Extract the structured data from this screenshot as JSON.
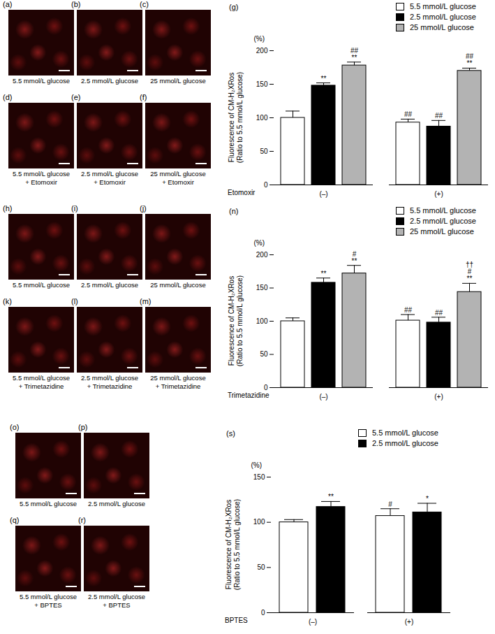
{
  "image_panels": [
    [
      {
        "label": "(a)",
        "caption": [
          "5.5 mmol/L glucose"
        ]
      },
      {
        "label": "(b)",
        "caption": [
          "2.5 mmol/L glucose"
        ]
      },
      {
        "label": "(c)",
        "caption": [
          "25 mmol/L glucose"
        ]
      },
      {
        "label": "(d)",
        "caption": [
          "5.5 mmol/L glucose",
          "+ Etomoxir"
        ]
      },
      {
        "label": "(e)",
        "caption": [
          "2.5 mmol/L glucose",
          "+ Etomoxir"
        ]
      },
      {
        "label": "(f)",
        "caption": [
          "25 mmol/L glucose",
          "+ Etomoxir"
        ]
      }
    ],
    [
      {
        "label": "(h)",
        "caption": [
          "5.5 mmol/L glucose"
        ]
      },
      {
        "label": "(i)",
        "caption": [
          "2.5 mmol/L glucose"
        ]
      },
      {
        "label": "(j)",
        "caption": [
          "25 mmol/L glucose"
        ]
      },
      {
        "label": "(k)",
        "caption": [
          "5.5 mmol/L glucose",
          "+ Trimetazidine"
        ]
      },
      {
        "label": "(l)",
        "caption": [
          "2.5 mmol/L glucose",
          "+ Trimetazidine"
        ]
      },
      {
        "label": "(m)",
        "caption": [
          "25 mmol/L glucose",
          "+ Trimetazidine"
        ]
      }
    ],
    [
      {
        "label": "(o)",
        "caption": [
          "5.5 mmol/L glucose"
        ]
      },
      {
        "label": "(p)",
        "caption": [
          "2.5 mmol/L glucose"
        ]
      },
      {
        "label": "(q)",
        "caption": [
          "5.5 mmol/L glucose",
          "+ BPTES"
        ]
      },
      {
        "label": "(r)",
        "caption": [
          "2.5 mmol/L glucose",
          "+ BPTES"
        ]
      }
    ]
  ],
  "chart_data": [
    {
      "type": "bar",
      "title": "(g)",
      "ylabel": [
        "Fluorescence of CM-H₂XRos",
        "(Ratio to 5.5 mmol/L glucose)"
      ],
      "y_unit_label": "(%)",
      "xlabel": "Etomoxir",
      "categories": [
        "(–)",
        "(+)"
      ],
      "ylim": [
        0,
        200
      ],
      "yticks": [
        0,
        50,
        100,
        150,
        200
      ],
      "legend": "top-right",
      "series": [
        {
          "name": "5.5 mmol/L glucose",
          "color": "#ffffff",
          "values": [
            100,
            93
          ],
          "errors": [
            10,
            5
          ],
          "annotations": [
            [],
            [
              "##"
            ]
          ]
        },
        {
          "name": "2.5 mmol/L glucose",
          "color": "#000000",
          "values": [
            148,
            87
          ],
          "errors": [
            4,
            9
          ],
          "annotations": [
            [
              "**"
            ],
            [
              "##"
            ]
          ]
        },
        {
          "name": "25 mmol/L glucose",
          "color": "#b3b3b3",
          "values": [
            178,
            170
          ],
          "errors": [
            5,
            4
          ],
          "annotations": [
            [
              "##",
              "**"
            ],
            [
              "##",
              "**"
            ]
          ]
        }
      ]
    },
    {
      "type": "bar",
      "title": "(n)",
      "ylabel": [
        "Fluorescence of CM-H₂XRos",
        "(Ratio to 5.5 mmol/L glucose)"
      ],
      "y_unit_label": "(%)",
      "xlabel": "Trimetazidine",
      "categories": [
        "(–)",
        "(+)"
      ],
      "ylim": [
        0,
        200
      ],
      "yticks": [
        0,
        50,
        100,
        150,
        200
      ],
      "legend": "top-right",
      "series": [
        {
          "name": "5.5 mmol/L glucose",
          "color": "#ffffff",
          "values": [
            100,
            101
          ],
          "errors": [
            5,
            9
          ],
          "annotations": [
            [],
            [
              "##"
            ]
          ]
        },
        {
          "name": "2.5 mmol/L glucose",
          "color": "#000000",
          "values": [
            158,
            98
          ],
          "errors": [
            7,
            8
          ],
          "annotations": [
            [
              "**"
            ],
            [
              "##"
            ]
          ]
        },
        {
          "name": "25 mmol/L glucose",
          "color": "#b3b3b3",
          "values": [
            172,
            144
          ],
          "errors": [
            12,
            13
          ],
          "annotations": [
            [
              "#",
              "**"
            ],
            [
              "††",
              "#",
              "**"
            ]
          ]
        }
      ]
    },
    {
      "type": "bar",
      "title": "(s)",
      "ylabel": [
        "Fluorescence of CM-H₂XRos",
        "(Ratio to 5.5 mmol/L glucose)"
      ],
      "y_unit_label": "(%)",
      "xlabel": "BPTES",
      "categories": [
        "(–)",
        "(+)"
      ],
      "ylim": [
        0,
        150
      ],
      "yticks": [
        0,
        50,
        100,
        150
      ],
      "legend": "top-right",
      "series": [
        {
          "name": "5.5 mmol/L glucose",
          "color": "#ffffff",
          "values": [
            100,
            107
          ],
          "errors": [
            3,
            8
          ],
          "annotations": [
            [],
            [
              "#"
            ]
          ]
        },
        {
          "name": "2.5 mmol/L glucose",
          "color": "#000000",
          "values": [
            117,
            111
          ],
          "errors": [
            6,
            10
          ],
          "annotations": [
            [
              "**"
            ],
            [
              "*"
            ]
          ]
        }
      ]
    }
  ]
}
